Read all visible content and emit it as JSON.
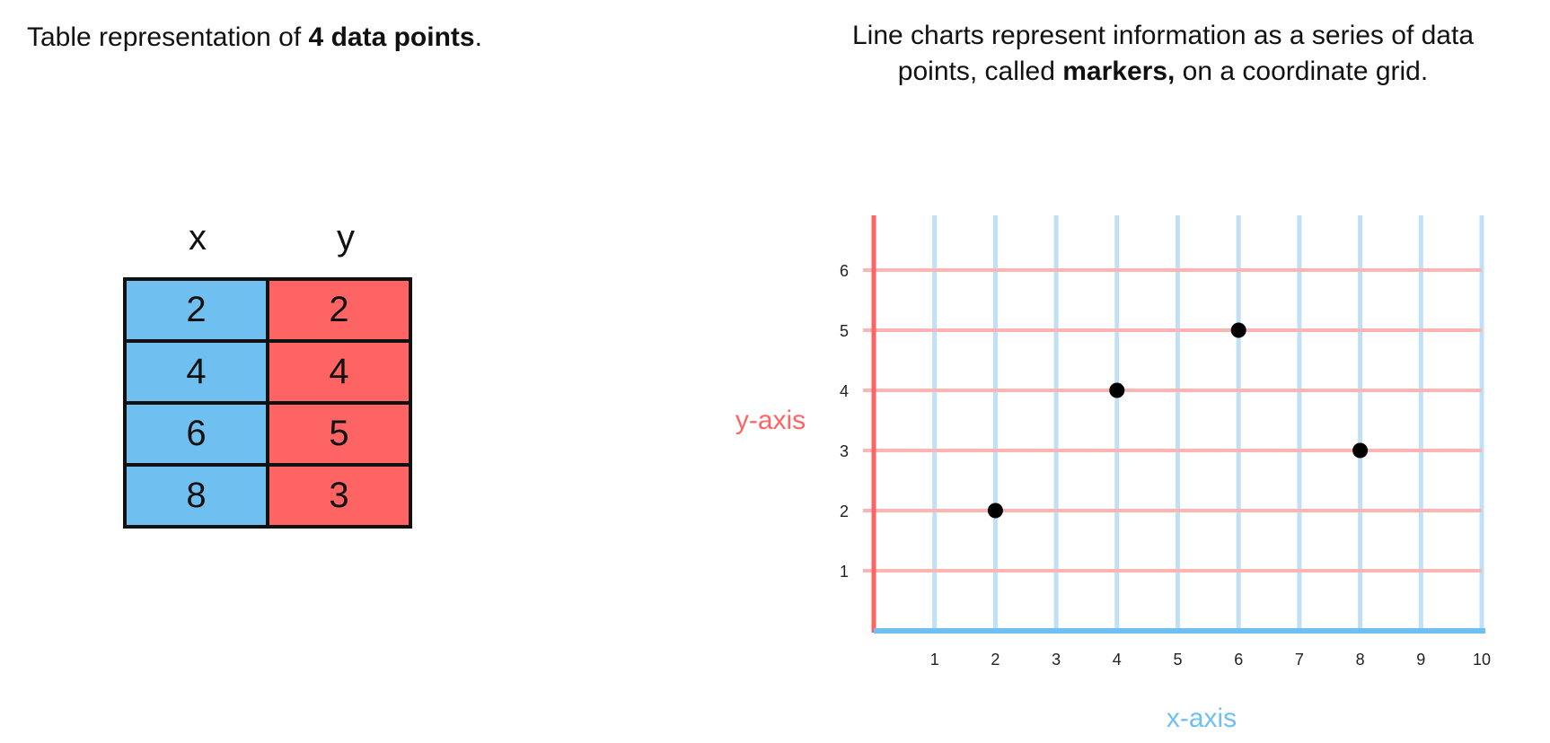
{
  "left_caption": {
    "prefix": "Table representation of ",
    "bold": "4 data points",
    "suffix": "."
  },
  "right_caption": {
    "line1": "Line charts represent information as a series of data",
    "line2_prefix": "points, called ",
    "line2_bold": "markers,",
    "line2_suffix": " on a coordinate grid."
  },
  "table": {
    "headers": [
      "x",
      "y"
    ],
    "rows": [
      [
        "2",
        "2"
      ],
      [
        "4",
        "4"
      ],
      [
        "6",
        "5"
      ],
      [
        "8",
        "3"
      ]
    ]
  },
  "colors": {
    "x_axis": "#6fbff0",
    "y_axis": "#ff6464",
    "x_grid": "#bfe0f7",
    "y_grid": "#ffb4b4",
    "marker": "#000000"
  },
  "chart_data": {
    "type": "scatter",
    "x": [
      2,
      4,
      6,
      8
    ],
    "y": [
      2,
      4,
      5,
      3
    ],
    "xlabel": "x-axis",
    "ylabel": "y-axis",
    "xlim": [
      0,
      10
    ],
    "ylim": [
      0,
      6.9
    ],
    "xticks": [
      "1",
      "2",
      "3",
      "4",
      "5",
      "6",
      "7",
      "8",
      "9",
      "10"
    ],
    "yticks": [
      "1",
      "2",
      "3",
      "4",
      "5",
      "6"
    ],
    "grid": true
  }
}
